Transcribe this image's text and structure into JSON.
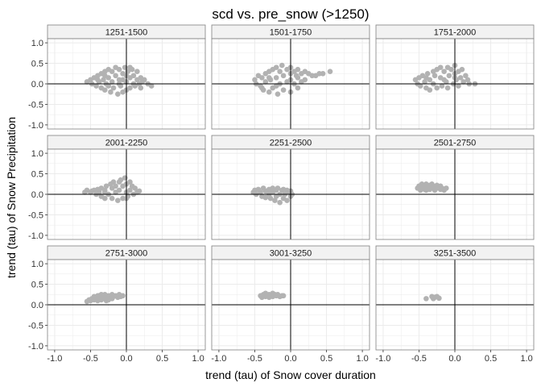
{
  "chart_data": {
    "type": "scatter",
    "title": "scd vs. pre_snow (>1250)",
    "xlabel": "trend (tau) of Snow cover duration",
    "ylabel": "trend (tau) of Snow Precipitation",
    "xlim": [
      -1.1,
      1.1
    ],
    "ylim": [
      -1.1,
      1.1
    ],
    "xticks": [
      -1.0,
      -0.5,
      0.0,
      0.5,
      1.0
    ],
    "xtick_labels": [
      "-1.0",
      "-0.5",
      "0.0",
      "0.5",
      "1.0"
    ],
    "yticks": [
      -1.0,
      -0.5,
      0.0,
      0.5,
      1.0
    ],
    "ytick_labels": [
      "-1.0",
      "-0.5",
      "0.0",
      "0.5",
      "1.0"
    ],
    "grid": true,
    "reference_lines": {
      "x": 0,
      "y": 0
    },
    "point_color": "#b2b2b2",
    "panel_bg": "#ffffff",
    "strip_bg": "#f2f2f2",
    "border_color": "#7f7f7f",
    "grid_color": "#ebebeb",
    "panels": [
      {
        "label": "1251-1500",
        "points": [
          [
            -0.55,
            0.05
          ],
          [
            -0.5,
            0.1
          ],
          [
            -0.48,
            0.0
          ],
          [
            -0.45,
            0.15
          ],
          [
            -0.42,
            -0.05
          ],
          [
            -0.4,
            0.2
          ],
          [
            -0.38,
            0.05
          ],
          [
            -0.35,
            -0.1
          ],
          [
            -0.35,
            0.25
          ],
          [
            -0.32,
            0.1
          ],
          [
            -0.3,
            0.3
          ],
          [
            -0.3,
            -0.15
          ],
          [
            -0.28,
            0.0
          ],
          [
            -0.25,
            0.35
          ],
          [
            -0.25,
            0.15
          ],
          [
            -0.22,
            -0.2
          ],
          [
            -0.2,
            0.05
          ],
          [
            -0.2,
            0.3
          ],
          [
            -0.18,
            -0.1
          ],
          [
            -0.15,
            0.4
          ],
          [
            -0.15,
            0.2
          ],
          [
            -0.12,
            -0.25
          ],
          [
            -0.1,
            0.1
          ],
          [
            -0.1,
            0.35
          ],
          [
            -0.08,
            -0.05
          ],
          [
            -0.05,
            0.25
          ],
          [
            -0.05,
            -0.2
          ],
          [
            -0.02,
            0.4
          ],
          [
            0.0,
            0.05
          ],
          [
            0.0,
            -0.15
          ],
          [
            0.02,
            0.3
          ],
          [
            0.05,
            0.15
          ],
          [
            0.05,
            -0.1
          ],
          [
            0.08,
            0.35
          ],
          [
            0.1,
            0.0
          ],
          [
            0.1,
            0.2
          ],
          [
            0.12,
            -0.05
          ],
          [
            0.15,
            0.1
          ],
          [
            0.15,
            0.3
          ],
          [
            0.18,
            0.0
          ],
          [
            0.2,
            0.15
          ],
          [
            0.22,
            0.05
          ],
          [
            0.25,
            0.1
          ],
          [
            0.3,
            0.0
          ],
          [
            0.35,
            -0.05
          ],
          [
            -0.25,
            -0.05
          ],
          [
            -0.4,
            0.1
          ],
          [
            -0.1,
            0.0
          ],
          [
            0.0,
            0.2
          ],
          [
            -0.05,
            0.1
          ],
          [
            0.2,
            -0.1
          ],
          [
            0.05,
            0.4
          ],
          [
            -0.3,
            0.2
          ]
        ]
      },
      {
        "label": "1501-1750",
        "points": [
          [
            -0.5,
            0.1
          ],
          [
            -0.48,
            0.0
          ],
          [
            -0.45,
            0.2
          ],
          [
            -0.42,
            -0.05
          ],
          [
            -0.4,
            0.15
          ],
          [
            -0.38,
            -0.15
          ],
          [
            -0.35,
            0.25
          ],
          [
            -0.35,
            0.05
          ],
          [
            -0.3,
            0.3
          ],
          [
            -0.3,
            -0.2
          ],
          [
            -0.28,
            0.1
          ],
          [
            -0.25,
            0.35
          ],
          [
            -0.25,
            -0.1
          ],
          [
            -0.2,
            0.4
          ],
          [
            -0.2,
            0.15
          ],
          [
            -0.18,
            -0.25
          ],
          [
            -0.15,
            0.3
          ],
          [
            -0.15,
            0.0
          ],
          [
            -0.12,
            0.45
          ],
          [
            -0.1,
            0.2
          ],
          [
            -0.1,
            -0.15
          ],
          [
            -0.05,
            0.35
          ],
          [
            -0.05,
            0.05
          ],
          [
            0.0,
            0.4
          ],
          [
            0.0,
            0.1
          ],
          [
            0.0,
            -0.2
          ],
          [
            0.05,
            0.3
          ],
          [
            0.05,
            0.0
          ],
          [
            0.08,
            0.2
          ],
          [
            0.1,
            0.35
          ],
          [
            0.1,
            -0.1
          ],
          [
            0.15,
            0.25
          ],
          [
            0.15,
            0.05
          ],
          [
            0.2,
            0.3
          ],
          [
            0.2,
            0.1
          ],
          [
            0.25,
            0.25
          ],
          [
            0.3,
            0.2
          ],
          [
            0.35,
            0.2
          ],
          [
            0.4,
            0.25
          ],
          [
            0.45,
            0.25
          ],
          [
            0.55,
            0.3
          ],
          [
            -0.3,
            0.15
          ],
          [
            -0.2,
            -0.05
          ],
          [
            0.0,
            0.25
          ],
          [
            0.1,
            0.15
          ],
          [
            -0.4,
            -0.1
          ]
        ]
      },
      {
        "label": "1751-2000",
        "points": [
          [
            -0.55,
            0.1
          ],
          [
            -0.52,
            0.0
          ],
          [
            -0.5,
            0.15
          ],
          [
            -0.48,
            -0.05
          ],
          [
            -0.45,
            0.2
          ],
          [
            -0.42,
            0.05
          ],
          [
            -0.4,
            -0.1
          ],
          [
            -0.38,
            0.25
          ],
          [
            -0.35,
            0.1
          ],
          [
            -0.35,
            -0.15
          ],
          [
            -0.3,
            0.3
          ],
          [
            -0.3,
            0.0
          ],
          [
            -0.28,
            0.2
          ],
          [
            -0.25,
            0.35
          ],
          [
            -0.25,
            -0.1
          ],
          [
            -0.2,
            0.15
          ],
          [
            -0.2,
            0.4
          ],
          [
            -0.18,
            -0.05
          ],
          [
            -0.15,
            0.3
          ],
          [
            -0.12,
            0.05
          ],
          [
            -0.1,
            0.4
          ],
          [
            -0.1,
            -0.1
          ],
          [
            -0.08,
            0.2
          ],
          [
            -0.05,
            0.35
          ],
          [
            -0.02,
            0.0
          ],
          [
            0.0,
            0.25
          ],
          [
            0.0,
            0.45
          ],
          [
            0.02,
            0.1
          ],
          [
            0.05,
            0.3
          ],
          [
            0.05,
            -0.05
          ],
          [
            0.08,
            0.15
          ],
          [
            0.1,
            0.35
          ],
          [
            0.12,
            0.05
          ],
          [
            0.15,
            0.2
          ],
          [
            0.18,
            0.1
          ],
          [
            0.2,
            0.0
          ],
          [
            0.28,
            0.0
          ],
          [
            -0.4,
            0.15
          ],
          [
            -0.15,
            0.1
          ],
          [
            0.0,
            0.15
          ]
        ]
      },
      {
        "label": "2001-2250",
        "points": [
          [
            -0.58,
            0.05
          ],
          [
            -0.55,
            0.1
          ],
          [
            -0.5,
            0.05
          ],
          [
            -0.48,
            0.08
          ],
          [
            -0.45,
            0.1
          ],
          [
            -0.42,
            0.0
          ],
          [
            -0.4,
            0.12
          ],
          [
            -0.38,
            0.05
          ],
          [
            -0.35,
            -0.05
          ],
          [
            -0.35,
            0.15
          ],
          [
            -0.3,
            0.1
          ],
          [
            -0.3,
            -0.1
          ],
          [
            -0.28,
            0.2
          ],
          [
            -0.25,
            0.0
          ],
          [
            -0.22,
            0.25
          ],
          [
            -0.2,
            -0.1
          ],
          [
            -0.2,
            0.15
          ],
          [
            -0.18,
            0.3
          ],
          [
            -0.15,
            0.05
          ],
          [
            -0.12,
            -0.15
          ],
          [
            -0.1,
            0.3
          ],
          [
            -0.1,
            0.1
          ],
          [
            -0.08,
            0.35
          ],
          [
            -0.05,
            -0.1
          ],
          [
            -0.05,
            0.2
          ],
          [
            -0.02,
            0.4
          ],
          [
            0.0,
            0.05
          ],
          [
            0.0,
            0.25
          ],
          [
            0.02,
            -0.05
          ],
          [
            0.05,
            0.3
          ],
          [
            0.05,
            0.1
          ],
          [
            0.08,
            0.2
          ],
          [
            0.1,
            0.0
          ],
          [
            0.12,
            0.15
          ],
          [
            0.15,
            0.05
          ],
          [
            0.18,
            0.08
          ],
          [
            -0.3,
            0.05
          ],
          [
            -0.15,
            0.2
          ],
          [
            0.0,
            -0.1
          ]
        ]
      },
      {
        "label": "2251-2500",
        "points": [
          [
            -0.52,
            0.05
          ],
          [
            -0.5,
            0.1
          ],
          [
            -0.48,
            0.0
          ],
          [
            -0.45,
            0.12
          ],
          [
            -0.42,
            0.05
          ],
          [
            -0.4,
            -0.05
          ],
          [
            -0.38,
            0.15
          ],
          [
            -0.35,
            0.08
          ],
          [
            -0.35,
            -0.08
          ],
          [
            -0.3,
            0.12
          ],
          [
            -0.3,
            0.0
          ],
          [
            -0.28,
            -0.1
          ],
          [
            -0.25,
            0.15
          ],
          [
            -0.25,
            0.05
          ],
          [
            -0.22,
            -0.15
          ],
          [
            -0.2,
            0.1
          ],
          [
            -0.2,
            -0.05
          ],
          [
            -0.18,
            0.15
          ],
          [
            -0.15,
            0.0
          ],
          [
            -0.15,
            -0.2
          ],
          [
            -0.12,
            0.1
          ],
          [
            -0.1,
            -0.1
          ],
          [
            -0.1,
            0.12
          ],
          [
            -0.08,
            0.0
          ],
          [
            -0.05,
            0.1
          ],
          [
            -0.05,
            -0.15
          ],
          [
            -0.02,
            0.05
          ],
          [
            0.0,
            0.08
          ],
          [
            0.0,
            -0.05
          ],
          [
            0.02,
            0.0
          ]
        ]
      },
      {
        "label": "2501-2750",
        "points": [
          [
            -0.52,
            0.15
          ],
          [
            -0.5,
            0.2
          ],
          [
            -0.48,
            0.1
          ],
          [
            -0.46,
            0.25
          ],
          [
            -0.45,
            0.15
          ],
          [
            -0.42,
            0.2
          ],
          [
            -0.4,
            0.1
          ],
          [
            -0.4,
            0.25
          ],
          [
            -0.38,
            0.18
          ],
          [
            -0.35,
            0.22
          ],
          [
            -0.35,
            0.12
          ],
          [
            -0.32,
            0.25
          ],
          [
            -0.3,
            0.15
          ],
          [
            -0.3,
            0.2
          ],
          [
            -0.28,
            0.1
          ],
          [
            -0.25,
            0.22
          ],
          [
            -0.25,
            0.15
          ],
          [
            -0.22,
            0.18
          ],
          [
            -0.2,
            0.12
          ],
          [
            -0.2,
            0.2
          ],
          [
            -0.18,
            0.15
          ],
          [
            -0.15,
            0.1
          ],
          [
            -0.12,
            0.15
          ],
          [
            -0.42,
            0.12
          ],
          [
            -0.33,
            0.18
          ]
        ]
      },
      {
        "label": "2751-3000",
        "points": [
          [
            -0.55,
            0.08
          ],
          [
            -0.52,
            0.12
          ],
          [
            -0.5,
            0.1
          ],
          [
            -0.48,
            0.15
          ],
          [
            -0.45,
            0.12
          ],
          [
            -0.45,
            0.2
          ],
          [
            -0.42,
            0.18
          ],
          [
            -0.4,
            0.1
          ],
          [
            -0.4,
            0.22
          ],
          [
            -0.38,
            0.15
          ],
          [
            -0.35,
            0.25
          ],
          [
            -0.35,
            0.12
          ],
          [
            -0.32,
            0.2
          ],
          [
            -0.3,
            0.15
          ],
          [
            -0.3,
            0.25
          ],
          [
            -0.28,
            0.18
          ],
          [
            -0.25,
            0.22
          ],
          [
            -0.25,
            0.12
          ],
          [
            -0.22,
            0.2
          ],
          [
            -0.2,
            0.25
          ],
          [
            -0.2,
            0.15
          ],
          [
            -0.18,
            0.2
          ],
          [
            -0.15,
            0.22
          ],
          [
            -0.12,
            0.18
          ],
          [
            -0.1,
            0.25
          ],
          [
            -0.08,
            0.2
          ],
          [
            -0.05,
            0.22
          ],
          [
            -0.38,
            0.22
          ],
          [
            -0.28,
            0.1
          ]
        ]
      },
      {
        "label": "3001-3250",
        "points": [
          [
            -0.42,
            0.22
          ],
          [
            -0.4,
            0.18
          ],
          [
            -0.38,
            0.25
          ],
          [
            -0.35,
            0.2
          ],
          [
            -0.35,
            0.28
          ],
          [
            -0.32,
            0.22
          ],
          [
            -0.3,
            0.25
          ],
          [
            -0.3,
            0.18
          ],
          [
            -0.28,
            0.22
          ],
          [
            -0.25,
            0.28
          ],
          [
            -0.25,
            0.2
          ],
          [
            -0.22,
            0.25
          ],
          [
            -0.2,
            0.22
          ],
          [
            -0.18,
            0.25
          ],
          [
            -0.15,
            0.2
          ],
          [
            -0.12,
            0.22
          ],
          [
            -0.1,
            0.22
          ]
        ]
      },
      {
        "label": "3251-3500",
        "points": [
          [
            -0.4,
            0.15
          ],
          [
            -0.32,
            0.2
          ],
          [
            -0.3,
            0.15
          ],
          [
            -0.28,
            0.18
          ],
          [
            -0.25,
            0.2
          ],
          [
            -0.22,
            0.16
          ]
        ]
      }
    ]
  }
}
